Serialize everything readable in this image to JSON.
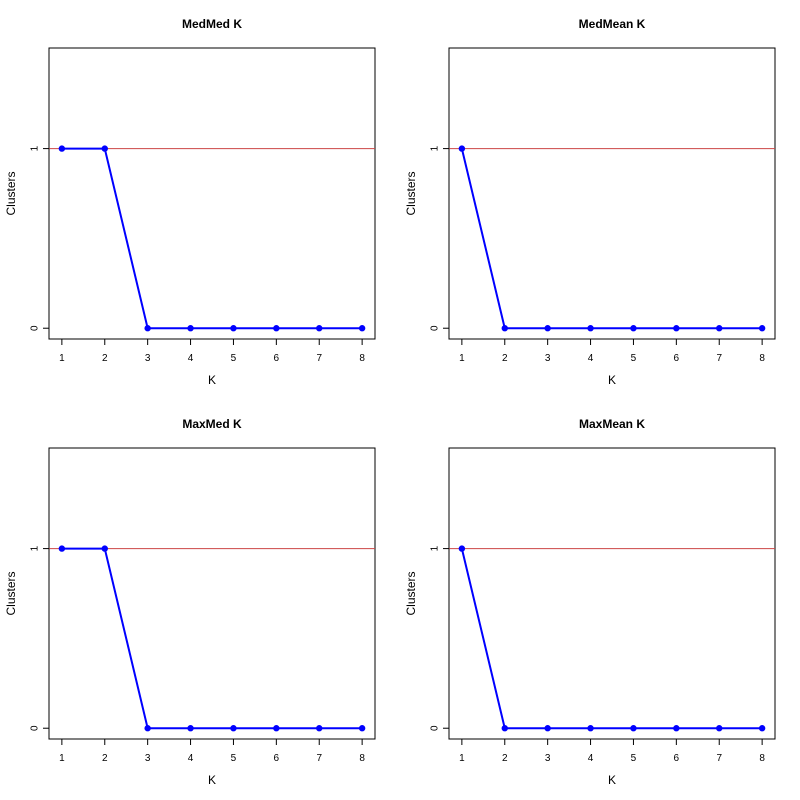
{
  "chart_data": [
    {
      "type": "line",
      "title": "MedMed K",
      "xlabel": "K",
      "ylabel": "Clusters",
      "x": [
        1,
        2,
        3,
        4,
        5,
        6,
        7,
        8
      ],
      "x_ticks": [
        "1",
        "2",
        "3",
        "4",
        "5",
        "6",
        "7",
        "8"
      ],
      "y_ticks": [
        "0",
        "1"
      ],
      "series": [
        {
          "values": [
            1,
            1,
            0,
            0,
            0,
            0,
            0,
            0
          ],
          "color": "#0000ff"
        }
      ],
      "reference_line": {
        "y": 1,
        "color": "#cc4444"
      },
      "xlim": [
        0.7,
        8.3
      ],
      "ylim": [
        -0.06,
        1.56
      ],
      "grid": false
    },
    {
      "type": "line",
      "title": "MedMean K",
      "xlabel": "K",
      "ylabel": "Clusters",
      "x": [
        1,
        2,
        3,
        4,
        5,
        6,
        7,
        8
      ],
      "x_ticks": [
        "1",
        "2",
        "3",
        "4",
        "5",
        "6",
        "7",
        "8"
      ],
      "y_ticks": [
        "0",
        "1"
      ],
      "series": [
        {
          "values": [
            1,
            0,
            0,
            0,
            0,
            0,
            0,
            0
          ],
          "color": "#0000ff"
        }
      ],
      "reference_line": {
        "y": 1,
        "color": "#cc4444"
      },
      "xlim": [
        0.7,
        8.3
      ],
      "ylim": [
        -0.06,
        1.56
      ],
      "grid": false
    },
    {
      "type": "line",
      "title": "MaxMed K",
      "xlabel": "K",
      "ylabel": "Clusters",
      "x": [
        1,
        2,
        3,
        4,
        5,
        6,
        7,
        8
      ],
      "x_ticks": [
        "1",
        "2",
        "3",
        "4",
        "5",
        "6",
        "7",
        "8"
      ],
      "y_ticks": [
        "0",
        "1"
      ],
      "series": [
        {
          "values": [
            1,
            1,
            0,
            0,
            0,
            0,
            0,
            0
          ],
          "color": "#0000ff"
        }
      ],
      "reference_line": {
        "y": 1,
        "color": "#cc4444"
      },
      "xlim": [
        0.7,
        8.3
      ],
      "ylim": [
        -0.06,
        1.56
      ],
      "grid": false
    },
    {
      "type": "line",
      "title": "MaxMean K",
      "xlabel": "K",
      "ylabel": "Clusters",
      "x": [
        1,
        2,
        3,
        4,
        5,
        6,
        7,
        8
      ],
      "x_ticks": [
        "1",
        "2",
        "3",
        "4",
        "5",
        "6",
        "7",
        "8"
      ],
      "y_ticks": [
        "0",
        "1"
      ],
      "series": [
        {
          "values": [
            1,
            0,
            0,
            0,
            0,
            0,
            0,
            0
          ],
          "color": "#0000ff"
        }
      ],
      "reference_line": {
        "y": 1,
        "color": "#cc4444"
      },
      "xlim": [
        0.7,
        8.3
      ],
      "ylim": [
        -0.06,
        1.56
      ],
      "grid": false
    }
  ]
}
